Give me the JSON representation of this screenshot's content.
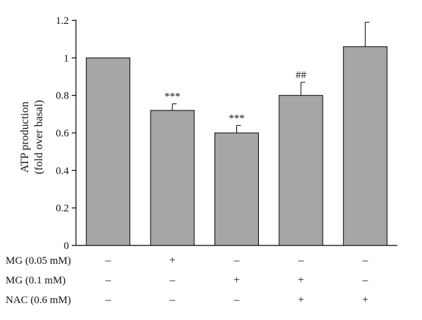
{
  "chart_data": {
    "type": "bar",
    "ylabel_line1": "ATP production",
    "ylabel_line2": "(fold over basal)",
    "ylim": [
      0,
      1.2
    ],
    "yticks": [
      "0",
      "0.2",
      "0.4",
      "0.6",
      "0.8",
      "1",
      "1.2"
    ],
    "grid": false,
    "bar_color": "#a6a6a6",
    "values": [
      1.0,
      0.72,
      0.6,
      0.8,
      1.06
    ],
    "errors": [
      0,
      0.035,
      0.04,
      0.07,
      0.13
    ],
    "significance": [
      "",
      "***",
      "***",
      "##",
      ""
    ],
    "conditions": [
      {
        "label": "MG (0.05 mM)",
        "signs": [
          "–",
          "+",
          "–",
          "–",
          "–"
        ]
      },
      {
        "label": "MG (0.1 mM)",
        "signs": [
          "–",
          "–",
          "+",
          "+",
          "–"
        ]
      },
      {
        "label": "NAC (0.6 mM)",
        "signs": [
          "–",
          "–",
          "–",
          "+",
          "+"
        ]
      }
    ]
  }
}
